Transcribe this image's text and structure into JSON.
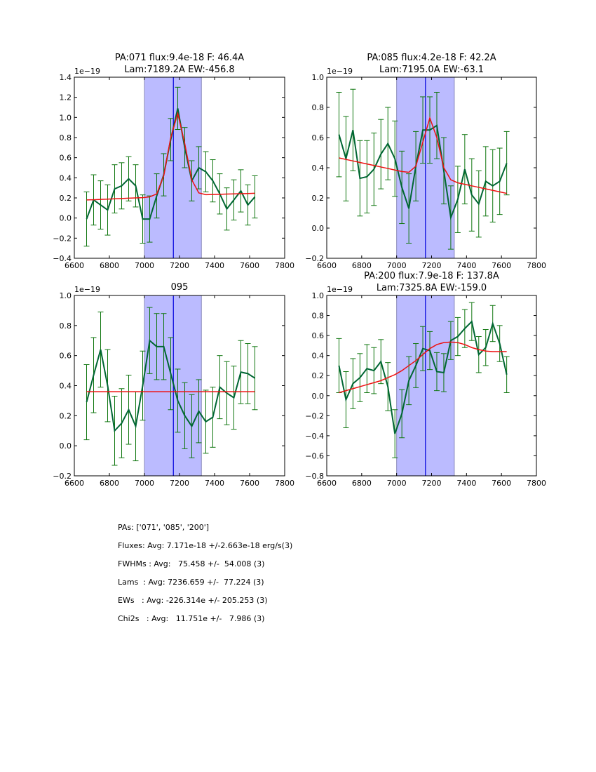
{
  "chart_data": [
    {
      "type": "line",
      "title": [
        "PA:071 flux:9.4e-18 F: 46.4A",
        "Lam:7189.2A EW:-456.8"
      ],
      "offset_label": "1e−19",
      "xlim": [
        6600,
        7800
      ],
      "ylim": [
        -0.4,
        1.4
      ],
      "xticks": [
        6600,
        6800,
        7000,
        7200,
        7400,
        7600,
        7800
      ],
      "yticks": [
        -0.4,
        -0.2,
        0.0,
        0.2,
        0.4,
        0.6,
        0.8,
        1.0,
        1.2,
        1.4
      ],
      "band": [
        7000,
        7325
      ],
      "vline": 7165,
      "x": [
        6670,
        6710,
        6750,
        6790,
        6830,
        6870,
        6910,
        6950,
        6990,
        7030,
        7070,
        7110,
        7150,
        7190,
        7230,
        7270,
        7310,
        7350,
        7390,
        7430,
        7470,
        7510,
        7550,
        7590,
        7630
      ],
      "series": [
        {
          "name": "data",
          "color": "#006633",
          "values": [
            -0.01,
            0.18,
            0.13,
            0.08,
            0.29,
            0.32,
            0.39,
            0.32,
            -0.01,
            -0.01,
            0.22,
            0.43,
            0.78,
            1.09,
            0.7,
            0.37,
            0.5,
            0.46,
            0.37,
            0.24,
            0.09,
            0.18,
            0.27,
            0.13,
            0.21
          ],
          "errors": [
            0.27,
            0.25,
            0.24,
            0.25,
            0.24,
            0.23,
            0.22,
            0.21,
            0.24,
            0.23,
            0.22,
            0.21,
            0.21,
            0.21,
            0.2,
            0.2,
            0.21,
            0.2,
            0.21,
            0.2,
            0.21,
            0.2,
            0.21,
            0.2,
            0.21
          ]
        },
        {
          "name": "fit",
          "color": "#ee1111",
          "values": [
            0.18,
            0.182,
            0.185,
            0.188,
            0.191,
            0.194,
            0.197,
            0.2,
            0.203,
            0.21,
            0.24,
            0.42,
            0.8,
            1.04,
            0.74,
            0.38,
            0.25,
            0.232,
            0.234,
            0.236,
            0.238,
            0.24,
            0.242,
            0.244,
            0.246
          ]
        }
      ]
    },
    {
      "type": "line",
      "title": [
        "PA:085 flux:4.2e-18 F: 42.2A",
        "Lam:7195.0A EW:-63.1"
      ],
      "offset_label": "1e−19",
      "xlim": [
        6600,
        7800
      ],
      "ylim": [
        -0.2,
        1.0
      ],
      "xticks": [
        6600,
        6800,
        7000,
        7200,
        7400,
        7600,
        7800
      ],
      "yticks": [
        -0.2,
        0.0,
        0.2,
        0.4,
        0.6,
        0.8,
        1.0
      ],
      "band": [
        7000,
        7330
      ],
      "vline": 7165,
      "x": [
        6670,
        6710,
        6750,
        6790,
        6830,
        6870,
        6910,
        6950,
        6990,
        7030,
        7070,
        7110,
        7150,
        7190,
        7230,
        7270,
        7310,
        7350,
        7390,
        7430,
        7470,
        7510,
        7550,
        7590,
        7630
      ],
      "series": [
        {
          "name": "data",
          "color": "#006633",
          "values": [
            0.62,
            0.46,
            0.65,
            0.33,
            0.34,
            0.39,
            0.49,
            0.56,
            0.46,
            0.27,
            0.13,
            0.41,
            0.65,
            0.65,
            0.68,
            0.38,
            0.07,
            0.19,
            0.39,
            0.22,
            0.16,
            0.31,
            0.28,
            0.31,
            0.43
          ],
          "errors": [
            0.28,
            0.28,
            0.27,
            0.25,
            0.24,
            0.24,
            0.23,
            0.24,
            0.25,
            0.24,
            0.23,
            0.23,
            0.22,
            0.22,
            0.22,
            0.22,
            0.21,
            0.22,
            0.23,
            0.24,
            0.22,
            0.23,
            0.24,
            0.22,
            0.21
          ]
        },
        {
          "name": "fit",
          "color": "#ee1111",
          "values": [
            0.465,
            0.455,
            0.445,
            0.435,
            0.425,
            0.415,
            0.405,
            0.395,
            0.385,
            0.375,
            0.37,
            0.41,
            0.57,
            0.73,
            0.6,
            0.4,
            0.32,
            0.3,
            0.29,
            0.28,
            0.27,
            0.26,
            0.25,
            0.24,
            0.23
          ]
        }
      ]
    },
    {
      "type": "line",
      "title": [
        "095"
      ],
      "offset_label": "1e−19",
      "xlim": [
        6600,
        7800
      ],
      "ylim": [
        -0.2,
        1.0
      ],
      "xticks": [
        6600,
        6800,
        7000,
        7200,
        7400,
        7600,
        7800
      ],
      "yticks": [
        -0.2,
        0.0,
        0.2,
        0.4,
        0.6,
        0.8,
        1.0
      ],
      "band": [
        7000,
        7325
      ],
      "vline": 7165,
      "x": [
        6670,
        6710,
        6750,
        6790,
        6830,
        6870,
        6910,
        6950,
        6990,
        7030,
        7070,
        7110,
        7150,
        7190,
        7230,
        7270,
        7310,
        7350,
        7390,
        7430,
        7470,
        7510,
        7550,
        7590,
        7630
      ],
      "series": [
        {
          "name": "data",
          "color": "#006633",
          "values": [
            0.29,
            0.47,
            0.64,
            0.4,
            0.1,
            0.15,
            0.24,
            0.13,
            0.4,
            0.7,
            0.66,
            0.66,
            0.48,
            0.3,
            0.2,
            0.13,
            0.23,
            0.16,
            0.19,
            0.39,
            0.35,
            0.32,
            0.49,
            0.48,
            0.45
          ],
          "errors": [
            0.25,
            0.25,
            0.25,
            0.24,
            0.23,
            0.23,
            0.23,
            0.23,
            0.23,
            0.22,
            0.22,
            0.22,
            0.24,
            0.21,
            0.22,
            0.21,
            0.21,
            0.21,
            0.2,
            0.21,
            0.21,
            0.21,
            0.21,
            0.2,
            0.21
          ]
        },
        {
          "name": "fit",
          "color": "#ee1111",
          "values": [
            0.36,
            0.36,
            0.36,
            0.36,
            0.36,
            0.36,
            0.36,
            0.36,
            0.36,
            0.36,
            0.36,
            0.36,
            0.36,
            0.36,
            0.36,
            0.36,
            0.36,
            0.36,
            0.36,
            0.36,
            0.36,
            0.36,
            0.36,
            0.36,
            0.36
          ]
        }
      ]
    },
    {
      "type": "line",
      "title": [
        "PA:200 flux:7.9e-18 F: 137.8A",
        "Lam:7325.8A EW:-159.0"
      ],
      "offset_label": "1e−19",
      "xlim": [
        6600,
        7800
      ],
      "ylim": [
        -0.8,
        1.0
      ],
      "xticks": [
        6600,
        6800,
        7000,
        7200,
        7400,
        7600,
        7800
      ],
      "yticks": [
        -0.8,
        -0.6,
        -0.4,
        -0.2,
        0.0,
        0.2,
        0.4,
        0.6,
        0.8,
        1.0
      ],
      "band": [
        7000,
        7330
      ],
      "vline": 7165,
      "x": [
        6670,
        6710,
        6750,
        6790,
        6830,
        6870,
        6910,
        6950,
        6990,
        7030,
        7070,
        7110,
        7150,
        7190,
        7230,
        7270,
        7310,
        7350,
        7390,
        7430,
        7470,
        7510,
        7550,
        7590,
        7630
      ],
      "series": [
        {
          "name": "data",
          "color": "#006633",
          "values": [
            0.3,
            -0.04,
            0.12,
            0.18,
            0.27,
            0.25,
            0.34,
            0.09,
            -0.38,
            -0.18,
            0.15,
            0.3,
            0.47,
            0.45,
            0.24,
            0.23,
            0.55,
            0.59,
            0.67,
            0.74,
            0.41,
            0.48,
            0.72,
            0.52,
            0.21
          ],
          "errors": [
            0.27,
            0.28,
            0.25,
            0.24,
            0.24,
            0.23,
            0.22,
            0.24,
            0.24,
            0.24,
            0.24,
            0.22,
            0.22,
            0.19,
            0.19,
            0.19,
            0.19,
            0.19,
            0.19,
            0.19,
            0.18,
            0.18,
            0.18,
            0.18,
            0.18
          ]
        },
        {
          "name": "fit",
          "color": "#ee1111",
          "values": [
            0.03,
            0.05,
            0.07,
            0.09,
            0.11,
            0.13,
            0.15,
            0.18,
            0.21,
            0.25,
            0.3,
            0.35,
            0.41,
            0.47,
            0.51,
            0.53,
            0.535,
            0.53,
            0.51,
            0.48,
            0.46,
            0.445,
            0.44,
            0.44,
            0.44
          ]
        }
      ]
    }
  ],
  "summary": [
    "PAs: ['071', '085', '200']",
    "Fluxes: Avg: 7.171e-18 +/-2.663e-18 erg/s(3)",
    "FWHMs : Avg:   75.458 +/-  54.008 (3)",
    "Lams  : Avg: 7236.659 +/-  77.224 (3)",
    "EWs   : Avg: -226.314e +/- 205.253 (3)",
    "Chi2s   : Avg:   11.751e +/-   7.986 (3)"
  ]
}
